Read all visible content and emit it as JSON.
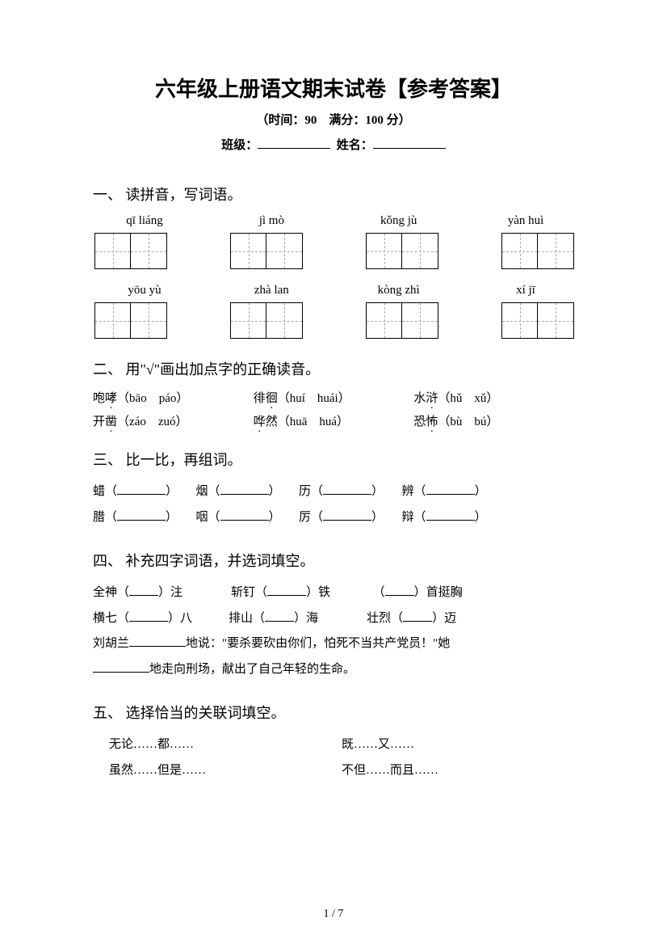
{
  "page": {
    "title": "六年级上册语文期末试卷【参考答案】",
    "subtitle": "（时间：90　满分：100 分）",
    "class_label": "班级：",
    "name_label": "姓名：",
    "footer": "1 / 7"
  },
  "q1": {
    "heading": "一、 读拼音，写词语。",
    "row1": [
      "qī liáng",
      "jì mò",
      "kǒng jù",
      "yàn huì"
    ],
    "row2": [
      "yōu yù",
      "zhà  lan",
      "kòng zhì",
      "xí jī"
    ]
  },
  "q2": {
    "heading": "二、 用\"√\"画出加点字的正确读音。",
    "items": [
      {
        "pre": "咆",
        "dot": "哮",
        "opts": "（bāo　páo）"
      },
      {
        "pre": "徘",
        "dot": "徊",
        "opts": "（huí　huái）"
      },
      {
        "pre": "水",
        "dot": "浒",
        "opts": "（hǔ　xǔ）"
      },
      {
        "pre": "开",
        "dot": "凿",
        "opts": "（záo　zuó）"
      },
      {
        "pre": "",
        "dot": "哗",
        "post": "然",
        "opts": "（huā　huá）"
      },
      {
        "pre": "恐",
        "dot": "怖",
        "opts": "（bù　bú）"
      }
    ]
  },
  "q3": {
    "heading": "三、 比一比，再组词。",
    "row1": [
      "蜡（",
      "）　　烟（",
      "）　　历（",
      "）　　辨（",
      "）"
    ],
    "row2": [
      "腊（",
      "）　　咽（",
      "）　　厉（",
      "）　　辩（",
      "）"
    ]
  },
  "q4": {
    "heading": "四、 补充四字词语，并选词填空。",
    "line1a": "全神（",
    "line1b": "）注",
    "line1c": "斩钉（",
    "line1d": "）铁",
    "line1e": "（",
    "line1f": "）首挺胸",
    "line2a": "横七（",
    "line2b": "）八",
    "line2c": "排山（",
    "line2d": "）海",
    "line2e": "壮烈（",
    "line2f": "）迈",
    "line3a": "刘胡兰",
    "line3b": "地说：\"要杀要砍由你们，怕死不当共产党员！\"她",
    "line4a": "地走向刑场，献出了自己年轻的生命。"
  },
  "q5": {
    "heading": "五、 选择恰当的关联词填空。",
    "c1r1": "无论……都……",
    "c2r1": "既……又……",
    "c1r2": "虽然……但是……",
    "c2r2": "不但……而且……"
  }
}
